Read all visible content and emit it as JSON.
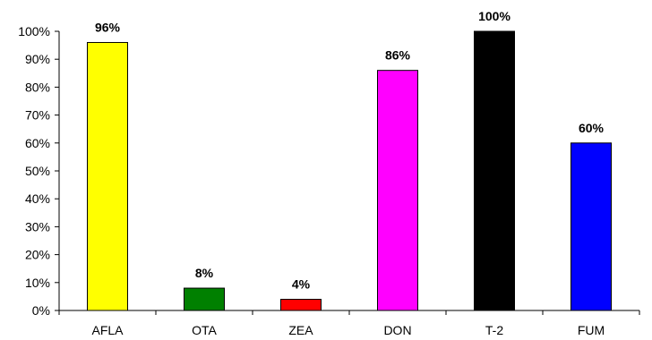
{
  "chart_data": {
    "type": "bar",
    "categories": [
      "AFLA",
      "OTA",
      "ZEA",
      "DON",
      "T-2",
      "FUM"
    ],
    "values": [
      96,
      8,
      4,
      86,
      100,
      60
    ],
    "data_labels": [
      "96%",
      "8%",
      "4%",
      "86%",
      "100%",
      "60%"
    ],
    "colors": [
      "#ffff00",
      "#008000",
      "#ff0000",
      "#ff00ff",
      "#000000",
      "#0000ff"
    ],
    "ylim": [
      0,
      100
    ],
    "y_ticks": [
      0,
      10,
      20,
      30,
      40,
      50,
      60,
      70,
      80,
      90,
      100
    ],
    "y_tick_labels": [
      "0%",
      "10%",
      "20%",
      "30%",
      "40%",
      "50%",
      "60%",
      "70%",
      "80%",
      "90%",
      "100%"
    ],
    "grid": false,
    "legend": "none"
  }
}
